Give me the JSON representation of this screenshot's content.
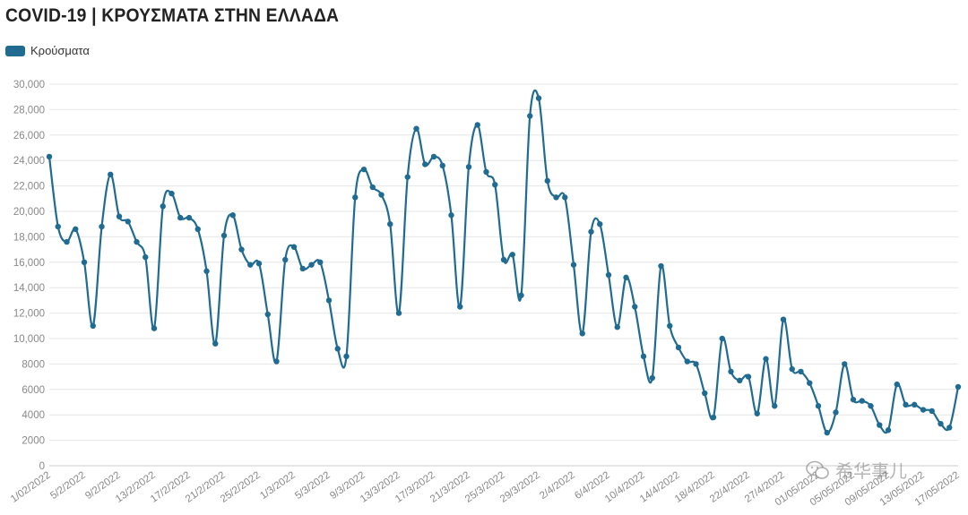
{
  "title": "COVID-19 | ΚΡΟΥΣΜΑΤΑ ΣΤΗΝ ΕΛΛΑΔΑ",
  "watermark_text": "希华事儿",
  "colors": {
    "series": "#1f6b91",
    "grid": "#e6e6e6",
    "axis_text": "#888888"
  },
  "chart_data": {
    "type": "line",
    "title": "COVID-19 | ΚΡΟΥΣΜΑΤΑ ΣΤΗΝ ΕΛΛΑΔΑ",
    "legend_position": "top-left",
    "grid": true,
    "ylim": [
      0,
      30000
    ],
    "yticks": [
      0,
      2000,
      4000,
      6000,
      8000,
      10000,
      12000,
      14000,
      16000,
      18000,
      20000,
      22000,
      24000,
      26000,
      28000,
      30000
    ],
    "ytick_labels": [
      "0",
      "2000",
      "4000",
      "6000",
      "8000",
      "10,000",
      "12,000",
      "14,000",
      "16,000",
      "18,000",
      "20,000",
      "22,000",
      "24,000",
      "26,000",
      "28,000",
      "30,000"
    ],
    "xtick_labels": [
      "1/02/2022",
      "5/2/2022",
      "9/2/2022",
      "13/2/2022",
      "17/2/2022",
      "21/2/2022",
      "25/2/2022",
      "1/3/2022",
      "5/3/2022",
      "9/3/2022",
      "13/3/2022",
      "17/3/2022",
      "21/3/2022",
      "25/3/2022",
      "29/3/2022",
      "2/4/2022",
      "6/4/2022",
      "10/4/2022",
      "14/4/2022",
      "18/4/2022",
      "22/4/2022",
      "27/4/2022",
      "01/05/2022",
      "05/05/2022",
      "09/05/2022",
      "13/05/2022",
      "17/05/2022"
    ],
    "series": [
      {
        "name": "Κρούσματα",
        "values": [
          24300,
          18800,
          17600,
          18600,
          16000,
          11000,
          18800,
          22900,
          19600,
          19200,
          17600,
          16400,
          10800,
          20400,
          21400,
          19500,
          19500,
          18600,
          15300,
          9600,
          18100,
          19700,
          17000,
          15800,
          15900,
          11900,
          8200,
          16200,
          17200,
          15500,
          15800,
          16000,
          13000,
          9200,
          8600,
          21100,
          23300,
          21900,
          21300,
          19000,
          12000,
          22700,
          26500,
          23700,
          24300,
          23600,
          19700,
          12500,
          23500,
          26800,
          23100,
          22100,
          16200,
          16600,
          13400,
          27500,
          28900,
          22400,
          21100,
          21100,
          15800,
          10400,
          18400,
          19000,
          15000,
          10900,
          14800,
          12500,
          8600,
          6900,
          15700,
          11000,
          9300,
          8200,
          8000,
          5700,
          3800,
          10000,
          7400,
          6700,
          7000,
          4100,
          8400,
          4700,
          11500,
          7600,
          7400,
          6500,
          4700,
          2600,
          4200,
          8000,
          5200,
          5100,
          4700,
          3200,
          2800,
          6400,
          4800,
          4800,
          4400,
          4300,
          3300,
          3000,
          6200
        ]
      }
    ]
  }
}
